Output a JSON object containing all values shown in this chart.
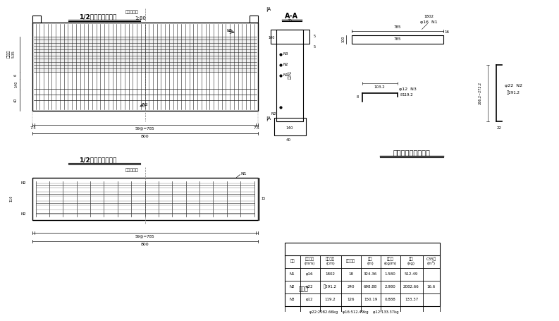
{
  "title_front": "1/2台身钢筋立面图",
  "scale_front": "1:80",
  "title_plan": "1/2台身钢筋平面图",
  "title_section": "A-A",
  "title_table": "全桥台身材料数量表",
  "note_label": "说明：",
  "bg_color": "#ffffff",
  "line_color": "#000000",
  "grid_color": "#555555",
  "dim_color": "#333333",
  "table_data": {
    "headers": [
      "编号",
      "钢筋直径\n(mm)",
      "单根长度\n(cm)",
      "钢筋根数",
      "总长\n(m)",
      "单位重\n(kg/m)",
      "总重\n(kg)",
      "C35砼\n(m³)"
    ],
    "rows": [
      [
        "N1",
        "φ16",
        "1802",
        "18",
        "324.36",
        "1.580",
        "512.49",
        ""
      ],
      [
        "N2",
        "φ22",
        "约291.2",
        "240",
        "698.88",
        "2.980",
        "2082.66",
        "16.6"
      ],
      [
        "N3",
        "φ12",
        "119.2",
        "126",
        "150.19",
        "0.888",
        "133.37",
        ""
      ]
    ],
    "footer": "φ22:2082.66kg    φ16:512.49kg    φ12:133.37kg"
  }
}
